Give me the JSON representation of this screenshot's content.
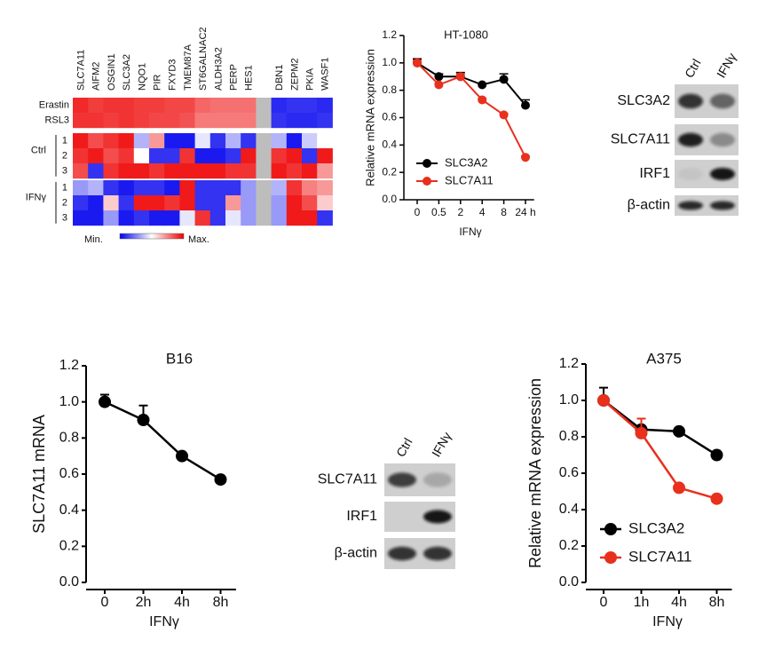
{
  "chart_data": [
    {
      "type": "heatmap",
      "columns": [
        "SLC7A11",
        "AIFM2",
        "OSGIN1",
        "SLC3A2",
        "NQO1",
        "PIR",
        "FXYD3",
        "TMEM87A",
        "ST6GALNAC2",
        "ALDH3A2",
        "PERP",
        "HES1",
        null,
        "DBN1",
        "ZEPM2",
        "PKIA",
        "WASF1"
      ],
      "column_colors": [
        "#d62020",
        "#111",
        "#111",
        "#2a3fa8",
        "#111",
        "#111",
        "#111",
        "#111",
        "#111",
        "#111",
        "#111",
        "#111",
        null,
        "#111",
        "#111",
        "#111",
        "#111"
      ],
      "rows": [
        "Erastin",
        "RSL3",
        "1",
        "2",
        "3",
        "1",
        "2",
        "3"
      ],
      "groups": [
        {
          "label": "Ctrl",
          "rows": [
            2,
            3,
            4
          ]
        },
        {
          "label": "IFNγ",
          "rows": [
            5,
            6,
            7
          ]
        }
      ],
      "values": [
        [
          0.92,
          0.88,
          0.9,
          0.9,
          0.88,
          0.88,
          0.86,
          0.86,
          0.8,
          0.78,
          0.78,
          0.78,
          null,
          0.08,
          0.1,
          0.1,
          0.08
        ],
        [
          0.9,
          0.9,
          0.88,
          0.9,
          0.88,
          0.86,
          0.86,
          0.84,
          0.76,
          0.76,
          0.76,
          0.76,
          null,
          0.1,
          0.08,
          0.08,
          0.1
        ],
        [
          0.95,
          0.85,
          0.9,
          0.95,
          0.35,
          0.7,
          0.05,
          0.05,
          0.45,
          0.1,
          0.35,
          0.1,
          null,
          0.35,
          0.05,
          0.4,
          0.5
        ],
        [
          0.9,
          0.95,
          0.85,
          0.9,
          0.5,
          0.1,
          0.1,
          0.9,
          0.05,
          0.05,
          0.1,
          0.95,
          null,
          0.9,
          0.95,
          0.1,
          0.95
        ],
        [
          0.85,
          0.1,
          0.9,
          0.95,
          0.95,
          0.9,
          0.95,
          0.95,
          0.95,
          0.95,
          0.9,
          0.9,
          null,
          0.95,
          0.9,
          0.95,
          0.7
        ],
        [
          0.3,
          0.35,
          0.1,
          0.05,
          0.1,
          0.1,
          0.05,
          0.95,
          0.1,
          0.1,
          0.1,
          0.3,
          null,
          0.35,
          0.9,
          0.75,
          0.7
        ],
        [
          0.1,
          0.05,
          0.6,
          0.1,
          0.95,
          0.95,
          0.9,
          0.95,
          0.1,
          0.1,
          0.7,
          0.3,
          null,
          0.3,
          0.95,
          0.85,
          0.6
        ],
        [
          0.05,
          0.05,
          0.3,
          0.05,
          0.1,
          0.05,
          0.05,
          0.45,
          0.9,
          0.1,
          0.45,
          0.3,
          null,
          0.3,
          0.95,
          0.95,
          0.1
        ]
      ],
      "colormap": [
        "#0000ee",
        "#ffffff",
        "#ee0000"
      ],
      "missing_color": "#bdbdbd",
      "scale_labels": [
        "Min.",
        "Max."
      ],
      "vlim": [
        0,
        1
      ]
    },
    {
      "type": "line",
      "title": "HT-1080",
      "ylabel": "Relative mRNA expression",
      "xlabel": "IFNγ",
      "categories": [
        "0",
        "0.5",
        "2",
        "4",
        "8",
        "24 h"
      ],
      "ylim": [
        0,
        1.2
      ],
      "yticks": [
        {
          "value": 0,
          "label": "0.0"
        },
        {
          "value": 0.2,
          "label": "0.2"
        },
        {
          "value": 0.4,
          "label": "0.4"
        },
        {
          "value": 0.6,
          "label": "0.6"
        },
        {
          "value": 0.8,
          "label": "0.8"
        },
        {
          "value": 1,
          "label": "1.0"
        },
        {
          "value": 1.2,
          "label": "1.2"
        }
      ],
      "legend": "lower left",
      "series": [
        {
          "name": "SLC3A2",
          "color": "#000000",
          "values": [
            1,
            0.9,
            0.9,
            0.84,
            0.88,
            0.69
          ],
          "errors": [
            0.03,
            0.02,
            0.03,
            0.01,
            0.04,
            0.04
          ]
        },
        {
          "name": "SLC7A11",
          "color": "#e8301c",
          "values": [
            1,
            0.84,
            0.9,
            0.73,
            0.62,
            0.31
          ],
          "errors": [
            0.02,
            0.01,
            0.02,
            0.01,
            0.01,
            0.01
          ]
        }
      ]
    },
    {
      "type": "line",
      "title": "B16",
      "ylabel": "SLC7A11 mRNA",
      "xlabel": "IFNγ",
      "categories": [
        "0",
        "2h",
        "4h",
        "8h"
      ],
      "ylim": [
        0,
        1.2
      ],
      "yticks": [
        {
          "value": 0,
          "label": "0.0"
        },
        {
          "value": 0.2,
          "label": "0.2"
        },
        {
          "value": 0.4,
          "label": "0.4"
        },
        {
          "value": 0.6,
          "label": "0.6"
        },
        {
          "value": 0.8,
          "label": "0.8"
        },
        {
          "value": 1,
          "label": "1.0"
        },
        {
          "value": 1.2,
          "label": "1.2"
        }
      ],
      "series": [
        {
          "color": "#000000",
          "values": [
            1,
            0.9,
            0.7,
            0.57
          ],
          "errors": [
            0.04,
            0.08,
            0,
            0
          ]
        }
      ]
    },
    {
      "type": "line",
      "title": "A375",
      "ylabel": "Relative mRNA expression",
      "xlabel": "IFNγ",
      "categories": [
        "0",
        "1h",
        "4h",
        "8h"
      ],
      "ylim": [
        0,
        1.2
      ],
      "yticks": [
        {
          "value": 0,
          "label": "0.0"
        },
        {
          "value": 0.2,
          "label": "0.2"
        },
        {
          "value": 0.4,
          "label": "0.4"
        },
        {
          "value": 0.6,
          "label": "0.6"
        },
        {
          "value": 0.8,
          "label": "0.8"
        },
        {
          "value": 1,
          "label": "1.0"
        },
        {
          "value": 1.2,
          "label": "1.2"
        }
      ],
      "legend": "lower left",
      "series": [
        {
          "name": "SLC3A2",
          "color": "#000000",
          "values": [
            1,
            0.84,
            0.83,
            0.7
          ],
          "errors": [
            0.07,
            0,
            0,
            0
          ]
        },
        {
          "name": "SLC7A11",
          "color": "#e8301c",
          "values": [
            1,
            0.82,
            0.52,
            0.46
          ],
          "errors": [
            0,
            0.08,
            0,
            0
          ]
        }
      ]
    }
  ],
  "blots": [
    {
      "lanes": [
        "Ctrl",
        "IFNγ"
      ],
      "rows": [
        "SLC3A2",
        "SLC7A11",
        "IRF1",
        "β-actin"
      ]
    },
    {
      "lanes": [
        "Ctrl",
        "IFNγ"
      ],
      "rows": [
        "SLC7A11",
        "IRF1",
        "β-actin"
      ]
    }
  ]
}
